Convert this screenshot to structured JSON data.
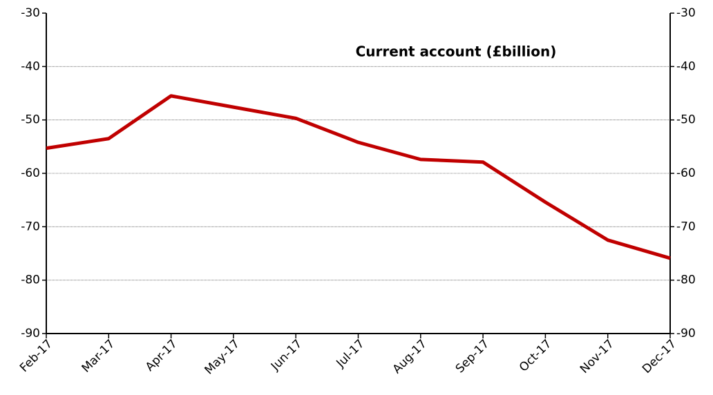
{
  "chart_data": {
    "type": "line",
    "title": "Current account (£billion)",
    "categories": [
      "Feb-17",
      "Mar-17",
      "Apr-17",
      "May-17",
      "Jun-17",
      "Jul-17",
      "Aug-17",
      "Sep-17",
      "Oct-17",
      "Nov-17",
      "Dec-17"
    ],
    "series": [
      {
        "name": "Current account",
        "color": "#c00000",
        "values": [
          -55.3,
          -53.5,
          -45.5,
          -47.6,
          -49.7,
          -54.2,
          -57.4,
          -57.9,
          -65.4,
          -72.5,
          -75.9
        ]
      }
    ],
    "ylim": [
      -90,
      -30
    ],
    "yticks": [
      -90,
      -80,
      -70,
      -60,
      -50,
      -40,
      -30
    ],
    "y2lim": [
      -90,
      -30
    ],
    "y2ticks": [
      -90,
      -80,
      -70,
      -60,
      -50,
      -40,
      -30
    ],
    "grid": true
  }
}
